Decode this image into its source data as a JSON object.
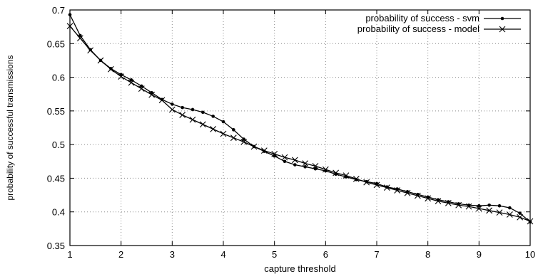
{
  "chart_data": {
    "type": "line",
    "xlabel": "capture threshold",
    "ylabel": "probability of successful transmissions",
    "xlim": [
      1,
      10
    ],
    "ylim": [
      0.35,
      0.7
    ],
    "x_ticks": [
      1,
      2,
      3,
      4,
      5,
      6,
      7,
      8,
      9,
      10
    ],
    "y_ticks": [
      "0.35",
      "0.4",
      "0.45",
      "0.5",
      "0.55",
      "0.6",
      "0.65",
      "0.7"
    ],
    "grid": true,
    "legend_position": "top-right",
    "series": [
      {
        "name": "probability of success - svm",
        "marker": "dot",
        "color": "#000000",
        "x": [
          1.0,
          1.2,
          1.4,
          1.6,
          1.8,
          2.0,
          2.2,
          2.4,
          2.6,
          2.8,
          3.0,
          3.2,
          3.4,
          3.6,
          3.8,
          4.0,
          4.2,
          4.4,
          4.6,
          4.8,
          5.0,
          5.2,
          5.4,
          5.6,
          5.8,
          6.0,
          6.2,
          6.4,
          6.6,
          6.8,
          7.0,
          7.2,
          7.4,
          7.6,
          7.8,
          8.0,
          8.2,
          8.4,
          8.6,
          8.8,
          9.0,
          9.2,
          9.4,
          9.6,
          9.8,
          10.0
        ],
        "y": [
          0.693,
          0.662,
          0.641,
          0.625,
          0.613,
          0.604,
          0.596,
          0.587,
          0.577,
          0.567,
          0.56,
          0.555,
          0.552,
          0.548,
          0.542,
          0.534,
          0.522,
          0.508,
          0.497,
          0.49,
          0.483,
          0.475,
          0.47,
          0.467,
          0.464,
          0.461,
          0.456,
          0.452,
          0.448,
          0.445,
          0.442,
          0.437,
          0.434,
          0.43,
          0.426,
          0.422,
          0.418,
          0.415,
          0.412,
          0.41,
          0.409,
          0.41,
          0.409,
          0.406,
          0.398,
          0.385
        ]
      },
      {
        "name": "probability of success - model",
        "marker": "x",
        "color": "#000000",
        "x": [
          1.0,
          1.2,
          1.4,
          1.6,
          1.8,
          2.0,
          2.2,
          2.4,
          2.6,
          2.8,
          3.0,
          3.2,
          3.4,
          3.6,
          3.8,
          4.0,
          4.2,
          4.4,
          4.6,
          4.8,
          5.0,
          5.2,
          5.4,
          5.6,
          5.8,
          6.0,
          6.2,
          6.4,
          6.6,
          6.8,
          7.0,
          7.2,
          7.4,
          7.6,
          7.8,
          8.0,
          8.2,
          8.4,
          8.6,
          8.8,
          9.0,
          9.2,
          9.4,
          9.6,
          9.8,
          10.0
        ],
        "y": [
          0.676,
          0.658,
          0.64,
          0.625,
          0.612,
          0.601,
          0.592,
          0.583,
          0.574,
          0.566,
          0.552,
          0.544,
          0.537,
          0.53,
          0.523,
          0.516,
          0.51,
          0.504,
          0.497,
          0.491,
          0.486,
          0.481,
          0.477,
          0.472,
          0.468,
          0.463,
          0.458,
          0.454,
          0.449,
          0.444,
          0.44,
          0.436,
          0.432,
          0.428,
          0.424,
          0.42,
          0.416,
          0.413,
          0.41,
          0.408,
          0.405,
          0.402,
          0.399,
          0.396,
          0.392,
          0.386
        ]
      }
    ]
  }
}
